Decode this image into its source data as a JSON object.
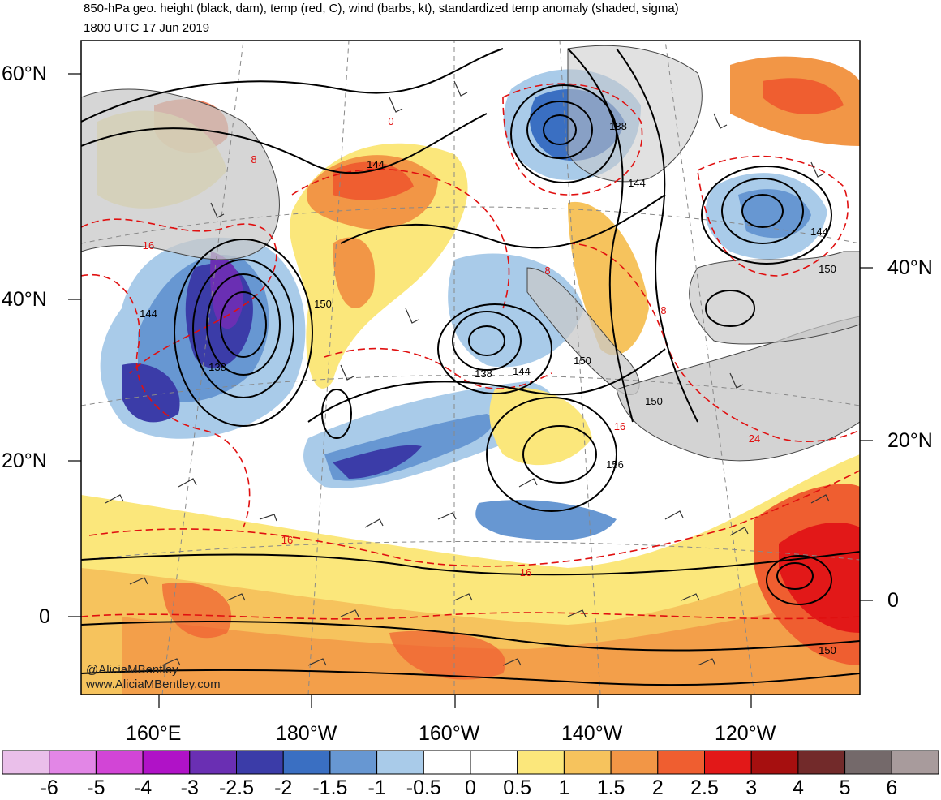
{
  "title": "850-hPa geo. height (black, dam), temp (red, C), wind (barbs, kt), standardized temp anomaly (shaded, sigma)",
  "valid_time": "1800 UTC 17 Jun 2019",
  "credits": [
    "@AliciaMBentley",
    "www.AliciaMBentley.com"
  ],
  "lat_labels_left": [
    "60°N",
    "40°N",
    "20°N",
    "0"
  ],
  "lat_labels_right": [
    "40°N",
    "20°N",
    "0"
  ],
  "lon_labels": [
    "160°E",
    "180°W",
    "160°W",
    "140°W",
    "120°W"
  ],
  "contour_labels": {
    "height": [
      "144",
      "138",
      "144",
      "144",
      "150",
      "144",
      "138",
      "138",
      "144",
      "150",
      "150",
      "156",
      "150",
      "150"
    ],
    "temperature": [
      "8",
      "16",
      "8",
      "8",
      "16",
      "16",
      "16",
      "24",
      "0"
    ]
  },
  "colorbar": {
    "labels": [
      "-6",
      "-5",
      "-4",
      "-3",
      "-2.5",
      "-2",
      "-1.5",
      "-1",
      "-0.5",
      "0",
      "0.5",
      "1",
      "1.5",
      "2",
      "2.5",
      "3",
      "4",
      "5",
      "6"
    ],
    "colors": [
      "#eabfea",
      "#e286e6",
      "#d245d6",
      "#b012c7",
      "#6a2fb3",
      "#3b3ca8",
      "#3a6fc2",
      "#6797d2",
      "#a9cbe9",
      "#ffffff",
      "#ffffff",
      "#fbe77b",
      "#f6c35d",
      "#f29646",
      "#ef5e30",
      "#e21818",
      "#a60f0f",
      "#722a2a",
      "#74696a",
      "#a89b9c"
    ]
  },
  "colors": {
    "land": "#c8c8c8",
    "coastline": "#444444",
    "height_contour": "#000000",
    "temperature_contour": "#e01010",
    "graticule": "#888888"
  }
}
